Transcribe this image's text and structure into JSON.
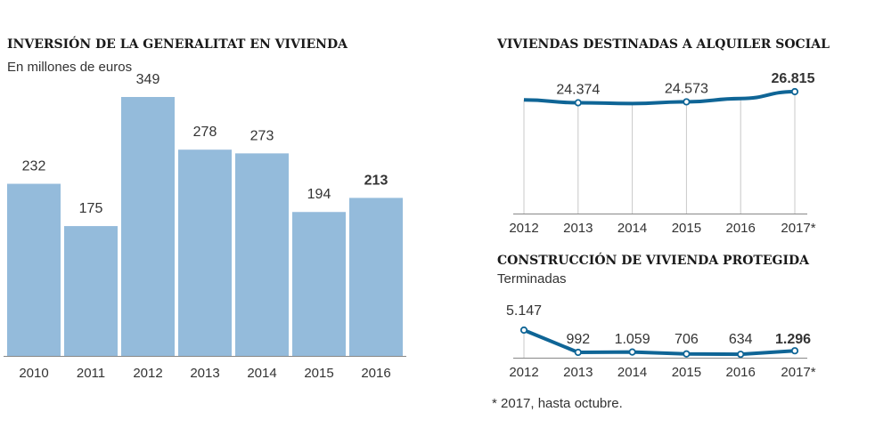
{
  "colors": {
    "bar": "#94bbdb",
    "line": "#0f6596",
    "grid": "#c8c8c8",
    "axis": "#888888"
  },
  "footnote": "* 2017, hasta octubre.",
  "chart_data": [
    {
      "type": "bar",
      "title": "INVERSIÓN DE LA GENERALITAT EN VIVIENDA",
      "subtitle": "En millones de euros",
      "categories": [
        "2010",
        "2011",
        "2012",
        "2013",
        "2014",
        "2015",
        "2016"
      ],
      "values": [
        232,
        175,
        349,
        278,
        273,
        194,
        213
      ],
      "labels": [
        "232",
        "175",
        "349",
        "278",
        "273",
        "194",
        "213"
      ],
      "highlight_last": true,
      "ylim": [
        0,
        349
      ]
    },
    {
      "type": "line",
      "title": "VIVIENDAS DESTINADAS A ALQUILER SOCIAL",
      "categories": [
        "2012",
        "2013",
        "2014",
        "2015",
        "2016",
        "2017*"
      ],
      "values": [
        25000,
        24374,
        24200,
        24573,
        25300,
        26815
      ],
      "labels": [
        "",
        "24.374",
        "",
        "24.573",
        "",
        "26.815"
      ],
      "markers": [
        false,
        true,
        false,
        true,
        false,
        true
      ],
      "ylim": [
        0,
        26815
      ]
    },
    {
      "type": "line",
      "title": "CONSTRUCCIÓN DE VIVIENDA PROTEGIDA",
      "subtitle": "Terminadas",
      "categories": [
        "2012",
        "2013",
        "2014",
        "2015",
        "2016",
        "2017*"
      ],
      "values": [
        5147,
        992,
        1059,
        706,
        634,
        1296
      ],
      "labels": [
        "5.147",
        "992",
        "1.059",
        "706",
        "634",
        "1.296"
      ],
      "markers": [
        true,
        true,
        true,
        true,
        true,
        true
      ],
      "ylim": [
        0,
        5147
      ]
    }
  ]
}
